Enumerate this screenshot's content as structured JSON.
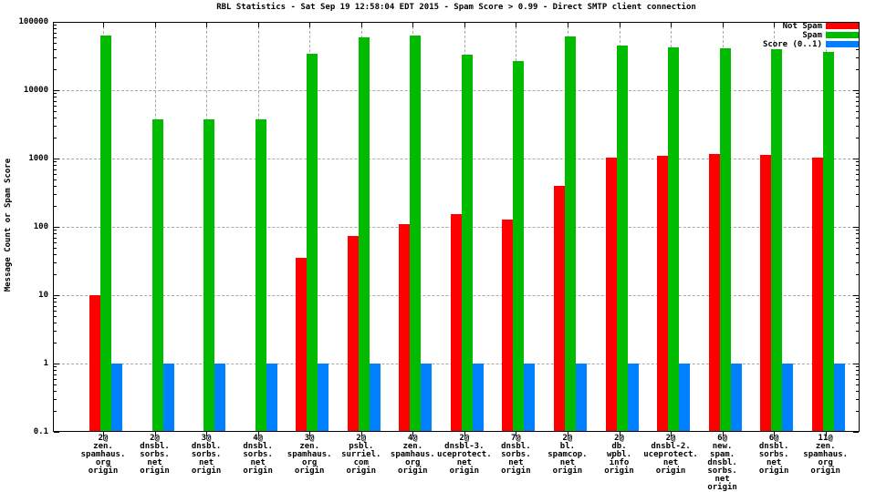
{
  "chart_data": {
    "type": "bar",
    "scale": "log",
    "title": "RBL Statistics - Sat Sep 19 12:58:04 EDT 2015 - Spam Score > 0.99 - Direct SMTP client connection",
    "xlabel": "",
    "ylabel": "Message Count or Spam Score",
    "ylim": [
      0.1,
      100000
    ],
    "y_ticks": [
      100000,
      10000,
      1000,
      100,
      10,
      1,
      0.1
    ],
    "grid": true,
    "legend_position": "top-right",
    "categories": [
      [
        "2@",
        "zen.",
        "spamhaus.",
        "org",
        "origin"
      ],
      [
        "2@",
        "dnsbl.",
        "sorbs.",
        "net",
        "origin"
      ],
      [
        "3@",
        "dnsbl.",
        "sorbs.",
        "net",
        "origin"
      ],
      [
        "4@",
        "dnsbl.",
        "sorbs.",
        "net",
        "origin"
      ],
      [
        "3@",
        "zen.",
        "spamhaus.",
        "org",
        "origin"
      ],
      [
        "2@",
        "psbl.",
        "surriel.",
        "com",
        "origin"
      ],
      [
        "4@",
        "zen.",
        "spamhaus.",
        "org",
        "origin"
      ],
      [
        "2@",
        "dnsbl-3.",
        "uceprotect.",
        "net",
        "origin"
      ],
      [
        "7@",
        "dnsbl.",
        "sorbs.",
        "net",
        "origin"
      ],
      [
        "2@",
        "bl.",
        "spamcop.",
        "net",
        "origin"
      ],
      [
        "2@",
        "db.",
        "wpbl.",
        "info",
        "origin"
      ],
      [
        "2@",
        "dnsbl-2.",
        "uceprotect.",
        "net",
        "origin"
      ],
      [
        "6@",
        "new.",
        "spam.",
        "dnsbl.",
        "sorbs.",
        "net",
        "origin"
      ],
      [
        "6@",
        "dnsbl.",
        "sorbs.",
        "net",
        "origin"
      ],
      [
        "11@",
        "zen.",
        "spamhaus.",
        "org",
        "origin"
      ]
    ],
    "series": [
      {
        "name": "Not Spam",
        "color": "#ff0000",
        "values": [
          10,
          0,
          0,
          0,
          35,
          74,
          110,
          155,
          129,
          394,
          1040,
          1107,
          1156,
          1140,
          1040
        ]
      },
      {
        "name": "Spam",
        "color": "#00bb00",
        "values": [
          64000,
          3700,
          3700,
          3700,
          34000,
          59000,
          63000,
          33000,
          27000,
          62000,
          45000,
          42000,
          41000,
          40000,
          36000
        ]
      },
      {
        "name": "Score (0..1)",
        "color": "#0080ff",
        "values": [
          1,
          1,
          1,
          1,
          1,
          1,
          1,
          1,
          1,
          1,
          1,
          1,
          1,
          1,
          1
        ]
      }
    ]
  },
  "colors": {
    "not_spam": "#ff0000",
    "spam": "#00bb00",
    "score": "#0080ff",
    "grid": "#a8a8a8",
    "axis": "#000000",
    "background": "#ffffff"
  }
}
